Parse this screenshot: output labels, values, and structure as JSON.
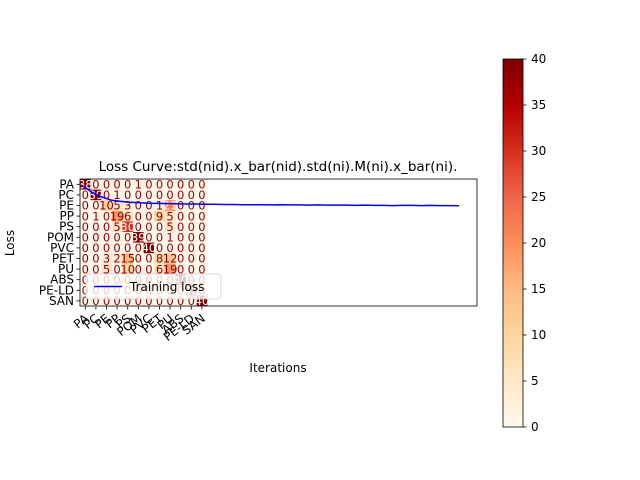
{
  "chart_data": [
    {
      "type": "heatmap",
      "title": "Loss Curve:std(nid).x_bar(nid).std(ni).M(ni).x_bar(ni).",
      "xlabel": "Iterations",
      "ylabel": "Loss",
      "row_labels": [
        "PA",
        "PC",
        "PE",
        "PP",
        "PS",
        "POM",
        "PVC",
        "PET",
        "PU",
        "ABS",
        "PE-LD",
        "SAN"
      ],
      "col_labels": [
        "PA",
        "PC",
        "PE",
        "PP",
        "PS",
        "POM",
        "PVC",
        "PET",
        "PU",
        "ABS",
        "PE-LD",
        "SAN"
      ],
      "cells": [
        [
          38,
          0,
          0,
          0,
          0,
          1,
          0,
          0,
          0,
          0,
          0,
          0
        ],
        [
          0,
          39,
          0,
          1,
          0,
          0,
          0,
          0,
          0,
          0,
          0,
          0
        ],
        [
          0,
          0,
          10,
          5,
          3,
          0,
          0,
          1,
          21,
          0,
          0,
          0
        ],
        [
          0,
          1,
          0,
          19,
          6,
          0,
          0,
          9,
          5,
          0,
          0,
          0
        ],
        [
          0,
          0,
          0,
          5,
          30,
          0,
          0,
          0,
          5,
          0,
          0,
          0
        ],
        [
          0,
          0,
          0,
          0,
          0,
          39,
          0,
          0,
          1,
          0,
          0,
          0
        ],
        [
          0,
          0,
          0,
          0,
          0,
          0,
          40,
          0,
          0,
          0,
          0,
          0
        ],
        [
          0,
          0,
          3,
          2,
          15,
          0,
          0,
          8,
          12,
          0,
          0,
          0
        ],
        [
          0,
          0,
          5,
          0,
          10,
          0,
          0,
          6,
          19,
          0,
          0,
          0
        ],
        [
          0,
          0,
          0,
          0,
          0,
          0,
          0,
          0,
          0,
          40,
          0,
          0
        ],
        [
          0,
          0,
          0,
          0,
          0,
          0,
          0,
          0,
          0,
          0,
          40,
          0
        ],
        [
          0,
          0,
          0,
          0,
          0,
          0,
          0,
          0,
          0,
          0,
          0,
          40
        ]
      ],
      "colorbar": {
        "colormap": "OrRd",
        "range": [
          0,
          40
        ],
        "ticks": [
          0,
          5,
          10,
          15,
          20,
          25,
          30,
          35,
          40
        ]
      },
      "line_series": [
        {
          "name": "Training loss",
          "color": "#0000ff",
          "x": [
            0,
            1,
            2,
            3,
            4,
            5,
            6,
            7,
            8,
            9,
            10,
            11,
            12,
            13,
            14,
            15,
            16,
            17,
            18,
            19,
            20,
            21,
            22,
            23,
            24,
            25,
            26,
            27,
            28,
            29,
            30,
            31,
            32,
            33,
            34,
            35,
            36,
            37,
            38,
            39,
            40
          ],
          "y": [
            10.0,
            8.5,
            7.5,
            6.8,
            6.5,
            6.3,
            6.2,
            6.1,
            6.05,
            6.0,
            5.95,
            5.9,
            5.9,
            5.85,
            5.85,
            5.8,
            5.8,
            5.75,
            5.75,
            5.75,
            5.7,
            5.75,
            5.7,
            5.7,
            5.65,
            5.7,
            5.65,
            5.65,
            5.65,
            5.6,
            5.65,
            5.6,
            5.6,
            5.55,
            5.6,
            5.6,
            5.55,
            5.6,
            5.55,
            5.55,
            5.5
          ]
        }
      ],
      "legend_position": "lower left",
      "grid": false
    }
  ]
}
